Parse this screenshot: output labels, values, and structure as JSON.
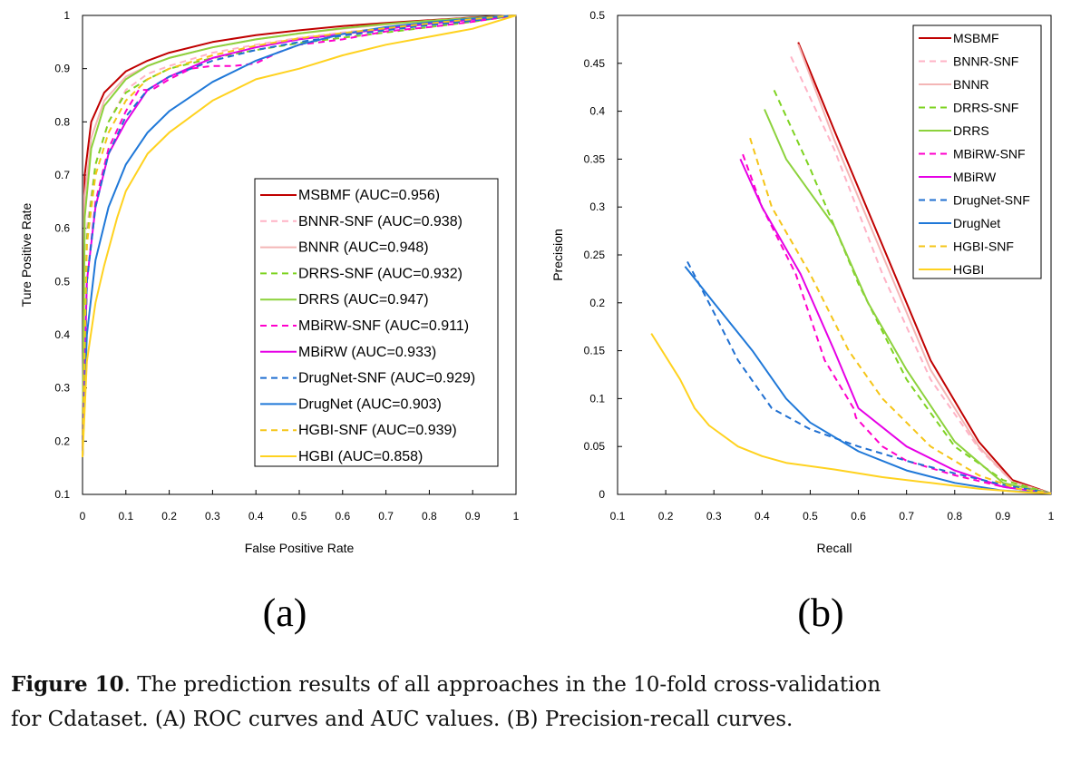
{
  "caption": {
    "figure_label": "Figure 10",
    "text_line1": ". The prediction results of all approaches in the 10-fold cross-validation",
    "text_line2": "for Cdataset. (A) ROC curves and AUC values. (B) Precision-recall curves."
  },
  "chart_data": [
    {
      "type": "line",
      "panel_label": "(a)",
      "xlabel": "False Positive Rate",
      "ylabel": "Ture Positive Rate",
      "xlim": [
        0,
        1
      ],
      "ylim": [
        0.1,
        1
      ],
      "xticks": [
        "0",
        "0.1",
        "0.2",
        "0.3",
        "0.4",
        "0.5",
        "0.6",
        "0.7",
        "0.8",
        "0.9",
        "1"
      ],
      "yticks": [
        "0.1",
        "0.2",
        "0.3",
        "0.4",
        "0.5",
        "0.6",
        "0.7",
        "0.8",
        "0.9",
        "1"
      ],
      "legend_position": "center-right",
      "series": [
        {
          "name": "MSBMF (AUC=0.956)",
          "color": "#c00000",
          "dash": "solid",
          "x": [
            0,
            0.005,
            0.02,
            0.05,
            0.1,
            0.15,
            0.2,
            0.3,
            0.4,
            0.5,
            0.6,
            0.7,
            0.8,
            0.9,
            1
          ],
          "y": [
            0.17,
            0.7,
            0.8,
            0.855,
            0.895,
            0.915,
            0.93,
            0.95,
            0.963,
            0.972,
            0.98,
            0.986,
            0.991,
            0.996,
            1
          ]
        },
        {
          "name": "BNNR-SNF (AUC=0.938)",
          "color": "#ffb3c6",
          "dash": "dashed",
          "x": [
            0,
            0.01,
            0.03,
            0.06,
            0.1,
            0.15,
            0.2,
            0.3,
            0.4,
            0.5,
            0.6,
            0.7,
            0.8,
            0.9,
            1
          ],
          "y": [
            0.17,
            0.6,
            0.72,
            0.8,
            0.86,
            0.89,
            0.905,
            0.93,
            0.945,
            0.958,
            0.968,
            0.977,
            0.985,
            0.992,
            1
          ]
        },
        {
          "name": "BNNR (AUC=0.948)",
          "color": "#f4b6b6",
          "dash": "solid",
          "x": [
            0,
            0.005,
            0.02,
            0.05,
            0.1,
            0.15,
            0.2,
            0.3,
            0.4,
            0.5,
            0.6,
            0.7,
            0.8,
            0.9,
            1
          ],
          "y": [
            0.17,
            0.66,
            0.77,
            0.84,
            0.885,
            0.905,
            0.92,
            0.94,
            0.955,
            0.966,
            0.975,
            0.983,
            0.99,
            0.995,
            1
          ]
        },
        {
          "name": "DRRS-SNF (AUC=0.932)",
          "color": "#7ed321",
          "dash": "dashed",
          "x": [
            0,
            0.01,
            0.03,
            0.06,
            0.1,
            0.15,
            0.2,
            0.3,
            0.4,
            0.5,
            0.6,
            0.7,
            0.8,
            0.9,
            1
          ],
          "y": [
            0.17,
            0.58,
            0.72,
            0.8,
            0.855,
            0.88,
            0.9,
            0.92,
            0.935,
            0.948,
            0.958,
            0.968,
            0.978,
            0.988,
            1
          ]
        },
        {
          "name": "DRRS (AUC=0.947)",
          "color": "#8cd23c",
          "dash": "solid",
          "x": [
            0,
            0.005,
            0.02,
            0.05,
            0.1,
            0.15,
            0.2,
            0.3,
            0.4,
            0.5,
            0.6,
            0.7,
            0.8,
            0.9,
            1
          ],
          "y": [
            0.17,
            0.62,
            0.75,
            0.83,
            0.88,
            0.905,
            0.92,
            0.94,
            0.955,
            0.966,
            0.976,
            0.984,
            0.99,
            0.995,
            1
          ]
        },
        {
          "name": "MBiRW-SNF (AUC=0.911)",
          "color": "#ff00cc",
          "dash": "dashed",
          "x": [
            0,
            0.01,
            0.03,
            0.06,
            0.1,
            0.13,
            0.16,
            0.2,
            0.25,
            0.3,
            0.35,
            0.4,
            0.45,
            0.5,
            0.6,
            0.7,
            0.8,
            0.9,
            1
          ],
          "y": [
            0.17,
            0.5,
            0.65,
            0.75,
            0.82,
            0.86,
            0.86,
            0.88,
            0.9,
            0.905,
            0.905,
            0.91,
            0.93,
            0.945,
            0.955,
            0.97,
            0.978,
            0.988,
            1
          ]
        },
        {
          "name": "MBiRW (AUC=0.933)",
          "color": "#e600e6",
          "dash": "solid",
          "x": [
            0,
            0.01,
            0.03,
            0.06,
            0.1,
            0.15,
            0.2,
            0.3,
            0.4,
            0.5,
            0.6,
            0.7,
            0.8,
            0.9,
            1
          ],
          "y": [
            0.17,
            0.5,
            0.64,
            0.74,
            0.8,
            0.86,
            0.885,
            0.92,
            0.94,
            0.955,
            0.965,
            0.975,
            0.984,
            0.992,
            1
          ]
        },
        {
          "name": "DrugNet-SNF (AUC=0.929)",
          "color": "#1f6fd1",
          "dash": "dashed",
          "x": [
            0,
            0.01,
            0.03,
            0.06,
            0.1,
            0.15,
            0.2,
            0.3,
            0.4,
            0.5,
            0.6,
            0.7,
            0.8,
            0.9,
            1
          ],
          "y": [
            0.17,
            0.5,
            0.64,
            0.74,
            0.81,
            0.86,
            0.885,
            0.915,
            0.935,
            0.95,
            0.962,
            0.972,
            0.982,
            0.99,
            1
          ]
        },
        {
          "name": "DrugNet (AUC=0.903)",
          "color": "#1f78d8",
          "dash": "solid",
          "x": [
            0,
            0.01,
            0.03,
            0.06,
            0.1,
            0.15,
            0.2,
            0.3,
            0.4,
            0.5,
            0.6,
            0.7,
            0.8,
            0.9,
            1
          ],
          "y": [
            0.17,
            0.4,
            0.54,
            0.64,
            0.72,
            0.78,
            0.82,
            0.875,
            0.915,
            0.945,
            0.965,
            0.978,
            0.987,
            0.994,
            1
          ]
        },
        {
          "name": "HGBI-SNF (AUC=0.939)",
          "color": "#f5c518",
          "dash": "dashed",
          "x": [
            0,
            0.01,
            0.03,
            0.06,
            0.1,
            0.15,
            0.2,
            0.3,
            0.4,
            0.5,
            0.6,
            0.7,
            0.8,
            0.9,
            1
          ],
          "y": [
            0.17,
            0.57,
            0.7,
            0.78,
            0.84,
            0.88,
            0.9,
            0.925,
            0.943,
            0.957,
            0.967,
            0.976,
            0.985,
            0.993,
            1
          ]
        },
        {
          "name": "HGBI (AUC=0.858)",
          "color": "#ffd21f",
          "dash": "solid",
          "x": [
            0,
            0.01,
            0.03,
            0.05,
            0.08,
            0.1,
            0.15,
            0.2,
            0.3,
            0.4,
            0.5,
            0.6,
            0.7,
            0.8,
            0.9,
            1
          ],
          "y": [
            0.17,
            0.35,
            0.46,
            0.53,
            0.62,
            0.67,
            0.74,
            0.78,
            0.84,
            0.88,
            0.9,
            0.925,
            0.945,
            0.96,
            0.975,
            1
          ]
        }
      ]
    },
    {
      "type": "line",
      "panel_label": "(b)",
      "xlabel": "Recall",
      "ylabel": "Precision",
      "xlim": [
        0.1,
        1
      ],
      "ylim": [
        0,
        0.5
      ],
      "xticks": [
        "0.1",
        "0.2",
        "0.3",
        "0.4",
        "0.5",
        "0.6",
        "0.7",
        "0.8",
        "0.9",
        "1"
      ],
      "yticks": [
        "0",
        "0.05",
        "0.1",
        "0.15",
        "0.2",
        "0.25",
        "0.3",
        "0.35",
        "0.4",
        "0.45",
        "0.5"
      ],
      "legend_position": "top-right",
      "series": [
        {
          "name": "MSBMF",
          "color": "#c00000",
          "dash": "solid",
          "x": [
            0.475,
            0.55,
            0.65,
            0.75,
            0.85,
            0.92,
            1
          ],
          "y": [
            0.472,
            0.38,
            0.26,
            0.14,
            0.055,
            0.015,
            0.001
          ]
        },
        {
          "name": "BNNR-SNF",
          "color": "#ffb3c6",
          "dash": "dashed",
          "x": [
            0.46,
            0.55,
            0.65,
            0.75,
            0.85,
            0.92,
            1
          ],
          "y": [
            0.457,
            0.36,
            0.23,
            0.12,
            0.048,
            0.013,
            0.001
          ]
        },
        {
          "name": "BNNR",
          "color": "#f4b6b6",
          "dash": "solid",
          "x": [
            0.475,
            0.55,
            0.65,
            0.75,
            0.85,
            0.92,
            1
          ],
          "y": [
            0.47,
            0.37,
            0.25,
            0.13,
            0.05,
            0.013,
            0.001
          ]
        },
        {
          "name": "DRRS-SNF",
          "color": "#7ed321",
          "dash": "dashed",
          "x": [
            0.425,
            0.5,
            0.6,
            0.7,
            0.8,
            0.9,
            1
          ],
          "y": [
            0.422,
            0.34,
            0.22,
            0.12,
            0.05,
            0.015,
            0.001
          ]
        },
        {
          "name": "DRRS",
          "color": "#8cd23c",
          "dash": "solid",
          "x": [
            0.405,
            0.45,
            0.55,
            0.62,
            0.7,
            0.8,
            0.9,
            1
          ],
          "y": [
            0.402,
            0.35,
            0.28,
            0.2,
            0.13,
            0.055,
            0.012,
            0.001
          ]
        },
        {
          "name": "MBiRW-SNF",
          "color": "#ff00cc",
          "dash": "dashed",
          "x": [
            0.36,
            0.4,
            0.47,
            0.53,
            0.59,
            0.595,
            0.65,
            0.7,
            0.8,
            0.9,
            1
          ],
          "y": [
            0.355,
            0.3,
            0.23,
            0.14,
            0.09,
            0.08,
            0.05,
            0.035,
            0.02,
            0.008,
            0.001
          ]
        },
        {
          "name": "MBiRW",
          "color": "#e600e6",
          "dash": "solid",
          "x": [
            0.355,
            0.4,
            0.48,
            0.55,
            0.6,
            0.7,
            0.8,
            0.9,
            1
          ],
          "y": [
            0.35,
            0.3,
            0.23,
            0.15,
            0.09,
            0.05,
            0.025,
            0.008,
            0.001
          ]
        },
        {
          "name": "DrugNet-SNF",
          "color": "#1f6fd1",
          "dash": "dashed",
          "x": [
            0.245,
            0.3,
            0.35,
            0.42,
            0.5,
            0.6,
            0.7,
            0.8,
            0.9,
            1
          ],
          "y": [
            0.243,
            0.19,
            0.14,
            0.09,
            0.068,
            0.05,
            0.035,
            0.022,
            0.01,
            0.001
          ]
        },
        {
          "name": "DrugNet",
          "color": "#1f78d8",
          "dash": "solid",
          "x": [
            0.24,
            0.3,
            0.38,
            0.45,
            0.5,
            0.6,
            0.7,
            0.8,
            0.9,
            1
          ],
          "y": [
            0.238,
            0.2,
            0.15,
            0.1,
            0.075,
            0.045,
            0.025,
            0.012,
            0.004,
            0.001
          ]
        },
        {
          "name": "HGBI-SNF",
          "color": "#f5c518",
          "dash": "dashed",
          "x": [
            0.375,
            0.42,
            0.5,
            0.58,
            0.65,
            0.75,
            0.85,
            0.93,
            1
          ],
          "y": [
            0.372,
            0.3,
            0.23,
            0.15,
            0.1,
            0.05,
            0.02,
            0.006,
            0.001
          ]
        },
        {
          "name": "HGBI",
          "color": "#ffd21f",
          "dash": "solid",
          "x": [
            0.17,
            0.23,
            0.26,
            0.29,
            0.35,
            0.4,
            0.45,
            0.55,
            0.65,
            0.75,
            0.85,
            0.95,
            1
          ],
          "y": [
            0.168,
            0.12,
            0.09,
            0.072,
            0.05,
            0.04,
            0.033,
            0.026,
            0.018,
            0.012,
            0.006,
            0.002,
            0.001
          ]
        }
      ]
    }
  ]
}
